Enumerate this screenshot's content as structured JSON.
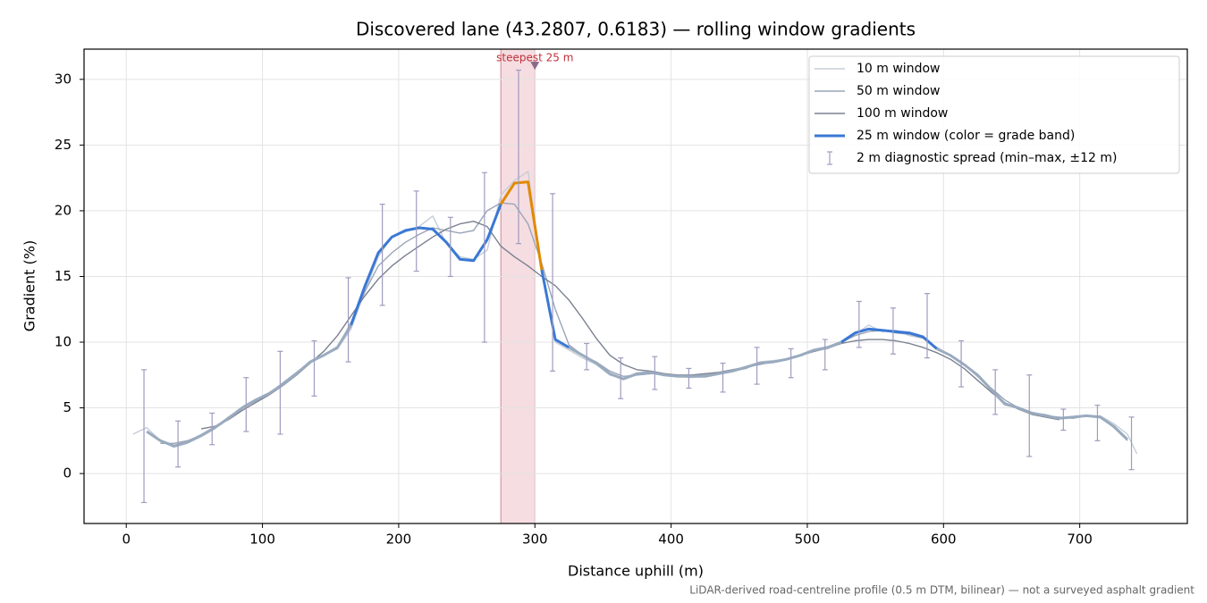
{
  "chart_data": {
    "type": "line",
    "title": "Discovered lane (43.2807, 0.6183) — rolling window gradients",
    "x_label": "Distance uphill (m)",
    "y_label": "Gradient (%)",
    "footnote": "LiDAR-derived road-centreline profile (0.5 m DTM, bilinear) — not a surveyed asphalt gradient",
    "xlim": [
      -31,
      779
    ],
    "ylim": [
      -3.8,
      32.3
    ],
    "xticks": [
      0,
      100,
      200,
      300,
      400,
      500,
      600,
      700
    ],
    "yticks": [
      0,
      5,
      10,
      15,
      20,
      25,
      30
    ],
    "grid": true,
    "legend": "upper right",
    "x": [
      5,
      15,
      25,
      35,
      45,
      55,
      65,
      75,
      85,
      95,
      105,
      115,
      125,
      135,
      145,
      155,
      165,
      175,
      185,
      195,
      205,
      215,
      225,
      235,
      245,
      255,
      265,
      275,
      285,
      295,
      305,
      315,
      325,
      335,
      345,
      355,
      365,
      375,
      385,
      395,
      405,
      415,
      425,
      435,
      445,
      455,
      465,
      475,
      485,
      495,
      505,
      515,
      525,
      535,
      545,
      555,
      565,
      575,
      585,
      595,
      605,
      615,
      625,
      635,
      645,
      655,
      665,
      675,
      685,
      695,
      705,
      715,
      725,
      735,
      742
    ],
    "series": [
      {
        "name": "10 m window",
        "color": "#c5cdd8",
        "width": 1.4,
        "values": [
          3.0,
          3.5,
          2.5,
          2.0,
          2.3,
          2.8,
          3.4,
          4.3,
          5.0,
          5.6,
          6.0,
          6.9,
          7.6,
          8.4,
          9.0,
          9.5,
          11.0,
          13.8,
          16.5,
          18.0,
          18.4,
          18.8,
          19.6,
          17.5,
          16.5,
          16.3,
          17.0,
          21.2,
          22.3,
          23.0,
          15.5,
          10.0,
          9.4,
          8.8,
          8.3,
          7.5,
          7.2,
          7.5,
          7.6,
          7.6,
          7.4,
          7.3,
          7.4,
          7.6,
          7.8,
          8.0,
          8.5,
          8.6,
          8.7,
          9.0,
          9.3,
          9.5,
          9.9,
          10.6,
          11.3,
          10.8,
          10.9,
          10.5,
          10.3,
          9.5,
          9.0,
          8.3,
          7.4,
          6.3,
          5.2,
          5.0,
          4.6,
          4.5,
          4.2,
          4.3,
          4.4,
          4.4,
          3.8,
          3.0,
          1.5
        ]
      },
      {
        "name": "50 m window",
        "color": "#9aa5b8",
        "width": 1.4,
        "values": [
          null,
          null,
          2.3,
          2.3,
          2.5,
          2.9,
          3.5,
          4.3,
          5.0,
          5.5,
          6.1,
          6.9,
          7.7,
          8.5,
          9.0,
          9.5,
          11.5,
          13.8,
          15.8,
          16.8,
          17.6,
          18.2,
          18.7,
          18.5,
          18.3,
          18.5,
          20.0,
          20.6,
          20.5,
          19.0,
          16.0,
          12.5,
          9.8,
          9.0,
          8.5,
          7.8,
          7.4,
          7.5,
          7.6,
          7.6,
          7.4,
          7.4,
          7.5,
          7.6,
          7.8,
          8.0,
          8.4,
          8.5,
          8.7,
          9.0,
          9.3,
          9.6,
          10.0,
          10.5,
          10.8,
          10.9,
          10.7,
          10.6,
          10.3,
          9.6,
          9.0,
          8.3,
          7.4,
          6.5,
          5.6,
          5.0,
          4.6,
          4.4,
          4.3,
          4.2,
          4.4,
          4.3,
          3.5,
          2.5,
          null
        ]
      },
      {
        "name": "100 m window",
        "color": "#7a8090",
        "width": 1.4,
        "values": [
          null,
          null,
          null,
          null,
          null,
          3.4,
          3.6,
          4.1,
          4.8,
          5.4,
          6.0,
          6.7,
          7.5,
          8.4,
          9.3,
          10.5,
          12.0,
          13.5,
          14.8,
          15.8,
          16.6,
          17.3,
          18.0,
          18.6,
          19.0,
          19.2,
          18.8,
          17.3,
          16.5,
          15.8,
          15.0,
          14.3,
          13.2,
          11.8,
          10.3,
          9.0,
          8.3,
          7.9,
          7.8,
          7.6,
          7.5,
          7.5,
          7.6,
          7.7,
          7.9,
          8.1,
          8.3,
          8.5,
          8.7,
          9.0,
          9.3,
          9.6,
          9.9,
          10.1,
          10.2,
          10.2,
          10.1,
          9.9,
          9.6,
          9.2,
          8.7,
          8.0,
          7.1,
          6.2,
          5.4,
          4.9,
          4.5,
          4.3,
          4.1,
          null,
          null,
          null,
          null,
          null,
          null
        ]
      },
      {
        "name": "25 m window (color = grade band)",
        "color": "#3a78d4",
        "width": 3,
        "band_edges": [
          10,
          20
        ],
        "band_colors": [
          "#9aabbf",
          "#3a78d4",
          "#e08a00"
        ],
        "values": [
          null,
          3.2,
          2.5,
          2.1,
          2.4,
          2.9,
          3.5,
          4.2,
          5.0,
          5.6,
          6.1,
          6.8,
          7.6,
          8.5,
          9.0,
          9.6,
          11.3,
          14.2,
          16.8,
          18.0,
          18.5,
          18.7,
          18.6,
          17.6,
          16.3,
          16.2,
          17.8,
          20.5,
          22.1,
          22.2,
          15.5,
          10.2,
          9.6,
          9.0,
          8.4,
          7.6,
          7.2,
          7.6,
          7.7,
          7.5,
          7.4,
          7.4,
          7.4,
          7.6,
          7.8,
          8.1,
          8.4,
          8.5,
          8.7,
          9.0,
          9.4,
          9.6,
          10.0,
          10.7,
          11.0,
          10.9,
          10.8,
          10.7,
          10.4,
          9.5,
          9.0,
          8.3,
          7.5,
          6.4,
          5.3,
          5.0,
          4.6,
          4.4,
          4.2,
          4.3,
          4.4,
          4.3,
          3.6,
          2.6,
          null
        ]
      }
    ],
    "errorbars": {
      "name": "2 m diagnostic spread (min–max, ±12 m)",
      "color": "#9f9cbf",
      "x": [
        13,
        38,
        63,
        88,
        113,
        138,
        163,
        188,
        213,
        238,
        263,
        288,
        313,
        338,
        363,
        388,
        413,
        438,
        463,
        488,
        513,
        538,
        563,
        588,
        613,
        638,
        663,
        688,
        713,
        738
      ],
      "low": [
        -2.2,
        0.5,
        2.2,
        3.2,
        3.0,
        5.9,
        8.5,
        12.8,
        15.4,
        15.0,
        10.0,
        17.5,
        7.8,
        7.9,
        5.7,
        6.4,
        6.5,
        6.2,
        6.8,
        7.3,
        7.9,
        9.6,
        9.1,
        8.8,
        6.6,
        4.5,
        1.3,
        3.3,
        2.5,
        0.3
      ],
      "high": [
        7.9,
        4.0,
        4.6,
        7.3,
        9.3,
        10.1,
        14.9,
        20.5,
        21.5,
        19.5,
        22.9,
        30.7,
        21.3,
        9.9,
        8.8,
        8.9,
        8.0,
        8.4,
        9.6,
        9.5,
        10.2,
        13.1,
        12.6,
        13.7,
        10.1,
        7.9,
        7.5,
        4.9,
        5.2,
        4.3
      ]
    },
    "highlight_span": {
      "x": [
        275,
        300
      ],
      "color": "#e8b4bc"
    },
    "annotations": [
      {
        "text": "steepest 25 m",
        "x": 300,
        "y": 31,
        "color": "#c0303a",
        "marker_color": "#8a6a8a"
      }
    ]
  }
}
